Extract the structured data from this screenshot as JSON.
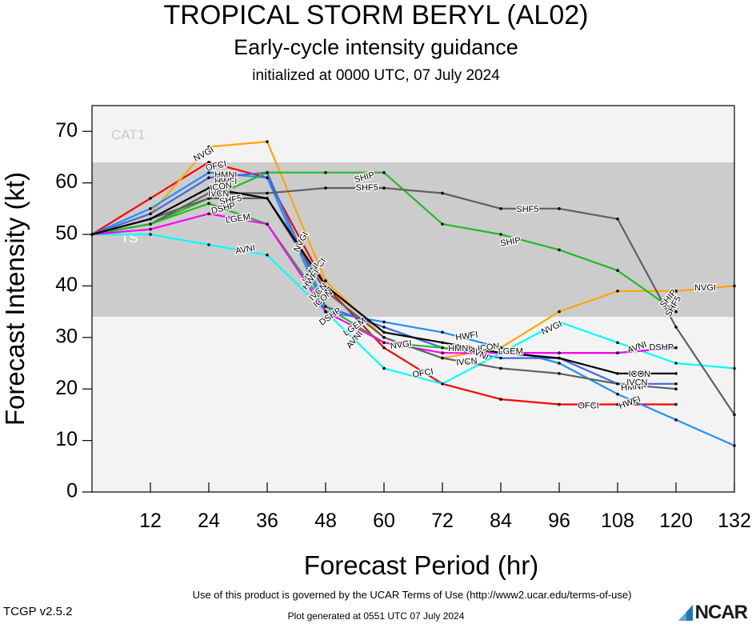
{
  "header": {
    "title": "TROPICAL STORM BERYL (AL02)",
    "subtitle": "Early-cycle intensity guidance",
    "init": "initialized at 0000 UTC, 07 July 2024"
  },
  "footer": {
    "terms": "Use of this product is governed by the UCAR Terms of Use (http://www2.ucar.edu/terms-of-use)",
    "version": "TCGP v2.5.2",
    "generated": "Plot generated at 0551 UTC   07 July 2024",
    "logo_text": "NCAR"
  },
  "chart_data": {
    "type": "line",
    "xlabel": "Forecast Period (hr)",
    "ylabel": "Forecast Intensity (kt)",
    "xlim": [
      0,
      132
    ],
    "ylim": [
      0,
      75
    ],
    "xticks": [
      12,
      24,
      36,
      48,
      60,
      72,
      84,
      96,
      108,
      120,
      132
    ],
    "yticks": [
      0,
      10,
      20,
      30,
      40,
      50,
      60,
      70
    ],
    "bands": [
      {
        "label": "TS",
        "from": 34,
        "to": 64,
        "color": "#cccccc"
      },
      {
        "label": "CAT1",
        "from": 64,
        "to": 75,
        "color": "#f3f3f3"
      }
    ],
    "series": [
      {
        "name": "OFCI",
        "color": "#ff0000",
        "x": [
          0,
          12,
          24,
          36,
          48,
          60,
          72,
          84,
          96,
          108,
          120
        ],
        "y": [
          50,
          57,
          64,
          61,
          40,
          28,
          21,
          18,
          17,
          17,
          17
        ]
      },
      {
        "name": "NVGI",
        "color": "#ffa500",
        "x": [
          0,
          12,
          24,
          36,
          48,
          60,
          72,
          84,
          96,
          108,
          120,
          132
        ],
        "y": [
          50,
          54,
          67,
          68,
          41,
          30,
          26,
          28,
          35,
          39,
          39,
          40
        ]
      },
      {
        "name": "HWFI",
        "color": "#1e90ff",
        "x": [
          0,
          12,
          24,
          36,
          48,
          60,
          72,
          84,
          96,
          108,
          120,
          132
        ],
        "y": [
          50,
          55,
          62,
          61,
          35,
          33,
          31,
          28,
          25,
          19,
          14,
          9
        ]
      },
      {
        "name": "HMNI",
        "color": "#4169e1",
        "x": [
          0,
          12,
          24,
          36,
          48,
          60,
          72,
          84,
          96,
          108,
          120
        ],
        "y": [
          50,
          54,
          61,
          62,
          36,
          32,
          28,
          26,
          26,
          21,
          21
        ]
      },
      {
        "name": "AVNI",
        "color": "#00ffff",
        "x": [
          0,
          12,
          24,
          36,
          48,
          60,
          72,
          84,
          96,
          108,
          120,
          132
        ],
        "y": [
          50,
          50,
          48,
          46,
          35,
          24,
          21,
          27,
          33,
          29,
          25,
          24
        ]
      },
      {
        "name": "SHIP",
        "color": "#22bb22",
        "x": [
          0,
          12,
          24,
          36,
          48,
          60,
          72,
          84,
          96,
          108,
          120
        ],
        "y": [
          50,
          52,
          57,
          62,
          62,
          62,
          52,
          50,
          47,
          43,
          35
        ]
      },
      {
        "name": "SHF5",
        "color": "#606060",
        "x": [
          0,
          12,
          24,
          36,
          48,
          60,
          72,
          84,
          96,
          108,
          120,
          132
        ],
        "y": [
          50,
          52,
          58,
          58,
          59,
          59,
          58,
          55,
          55,
          53,
          32,
          15
        ]
      },
      {
        "name": "LGEM",
        "color": "#22bb22",
        "x": [
          0,
          12,
          24,
          36,
          48,
          60,
          72,
          84,
          96,
          108,
          120
        ],
        "y": [
          50,
          52,
          56,
          52,
          36,
          29,
          28,
          27,
          27,
          27,
          28
        ]
      },
      {
        "name": "DSHP",
        "color": "#ff00ff",
        "x": [
          0,
          12,
          24,
          36,
          48,
          60,
          72,
          84,
          96,
          108,
          120
        ],
        "y": [
          50,
          51,
          54,
          52,
          35,
          29,
          27,
          27,
          27,
          27,
          28
        ]
      },
      {
        "name": "IVCN",
        "color": "#606060",
        "x": [
          0,
          12,
          24,
          36,
          48,
          60,
          72,
          84,
          96,
          108,
          120
        ],
        "y": [
          50,
          53,
          57,
          57,
          39,
          30,
          26,
          24,
          23,
          21,
          20
        ]
      },
      {
        "name": "ICON",
        "color": "#000000",
        "x": [
          0,
          12,
          24,
          36,
          48,
          60,
          72,
          84,
          96,
          108,
          120
        ],
        "y": [
          50,
          53,
          59,
          57,
          40,
          31,
          29,
          27,
          26,
          23,
          23
        ]
      }
    ],
    "labels": [
      {
        "text": "NVGI",
        "x": 23,
        "y": 65.5,
        "rot": -28
      },
      {
        "text": "OFCI",
        "x": 25.5,
        "y": 63.2,
        "rot": -12
      },
      {
        "text": "HMNI",
        "x": 27.5,
        "y": 61.5,
        "rot": 0
      },
      {
        "text": "HWFI",
        "x": 27.5,
        "y": 60.2,
        "rot": 0
      },
      {
        "text": "IVCN",
        "x": 26,
        "y": 57.8,
        "rot": 0
      },
      {
        "text": "ICON",
        "x": 26.5,
        "y": 59.2,
        "rot": -8
      },
      {
        "text": "SHF5",
        "x": 28.5,
        "y": 56.6,
        "rot": -10
      },
      {
        "text": "DSHP",
        "x": 27,
        "y": 55,
        "rot": -14
      },
      {
        "text": "LGEM",
        "x": 30,
        "y": 53,
        "rot": -8
      },
      {
        "text": "AVNI",
        "x": 31.5,
        "y": 47,
        "rot": -10
      },
      {
        "text": "NVGI",
        "x": 43,
        "y": 48.5,
        "rot": -62
      },
      {
        "text": "OFCI",
        "x": 46.5,
        "y": 43.5,
        "rot": -55
      },
      {
        "text": "HMNI",
        "x": 45,
        "y": 42.5,
        "rot": -55
      },
      {
        "text": "HWFI",
        "x": 45,
        "y": 41.2,
        "rot": -55
      },
      {
        "text": "IVCN",
        "x": 46.5,
        "y": 38.8,
        "rot": -45
      },
      {
        "text": "ICON",
        "x": 47.5,
        "y": 37.5,
        "rot": -40
      },
      {
        "text": "DSHP",
        "x": 49,
        "y": 34,
        "rot": -35
      },
      {
        "text": "LGEM",
        "x": 54,
        "y": 32,
        "rot": -35
      },
      {
        "text": "AVNI",
        "x": 54,
        "y": 29.5,
        "rot": -50
      },
      {
        "text": "SHIP",
        "x": 56,
        "y": 61,
        "rot": -15
      },
      {
        "text": "SHF5",
        "x": 56.5,
        "y": 59,
        "rot": 0
      },
      {
        "text": "NVGI",
        "x": 63.5,
        "y": 28.5,
        "rot": -8
      },
      {
        "text": "OFCI",
        "x": 68,
        "y": 23,
        "rot": -10
      },
      {
        "text": "HMNI",
        "x": 75.5,
        "y": 27.8,
        "rot": 0
      },
      {
        "text": "HWFI",
        "x": 77,
        "y": 30.2,
        "rot": -8
      },
      {
        "text": "ICON",
        "x": 81.5,
        "y": 28,
        "rot": -8
      },
      {
        "text": "IVCN",
        "x": 77,
        "y": 25.2,
        "rot": -5
      },
      {
        "text": "AVNI",
        "x": 79.5,
        "y": 26.8,
        "rot": 25
      },
      {
        "text": "LGEM",
        "x": 86,
        "y": 27.2,
        "rot": 0
      },
      {
        "text": "SHF5",
        "x": 89.5,
        "y": 54.8,
        "rot": 0
      },
      {
        "text": "SHIP",
        "x": 86,
        "y": 48.5,
        "rot": -10
      },
      {
        "text": "NVGI",
        "x": 94.5,
        "y": 31.8,
        "rot": -25
      },
      {
        "text": "OFCI",
        "x": 102,
        "y": 16.7,
        "rot": 0
      },
      {
        "text": "ICON",
        "x": 112.5,
        "y": 22.8,
        "rot": 0
      },
      {
        "text": "HMNI",
        "x": 111,
        "y": 20.3,
        "rot": -5
      },
      {
        "text": "IVCN",
        "x": 112,
        "y": 21.2,
        "rot": 0
      },
      {
        "text": "HWFI",
        "x": 110.5,
        "y": 17.3,
        "rot": -20
      },
      {
        "text": "AVNI",
        "x": 112,
        "y": 28,
        "rot": -20
      },
      {
        "text": "DSHP",
        "x": 117,
        "y": 28,
        "rot": 0
      },
      {
        "text": "SHIP",
        "x": 118.5,
        "y": 37.5,
        "rot": -50
      },
      {
        "text": "SHF5",
        "x": 119.5,
        "y": 36,
        "rot": -60
      },
      {
        "text": "NVGI",
        "x": 126,
        "y": 39.6,
        "rot": 0
      }
    ]
  }
}
